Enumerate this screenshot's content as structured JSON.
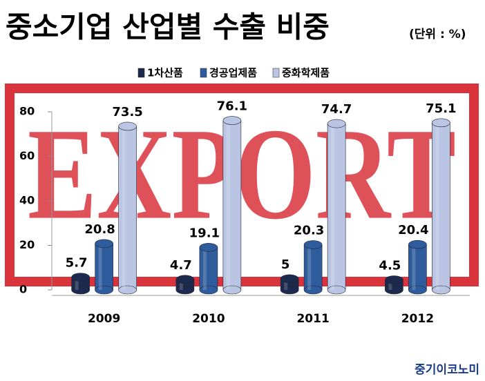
{
  "chart_data": {
    "type": "bar",
    "title": "중소기업 산업별 수출 비중",
    "subtitle": "(단위 : %)",
    "watermark": "EXPORT",
    "source": "중기이코노미",
    "categories": [
      "2009",
      "2010",
      "2011",
      "2012"
    ],
    "series": [
      {
        "name": "1차산품",
        "color": "#1c2b4d",
        "values": [
          5.7,
          4.7,
          5,
          4.5
        ]
      },
      {
        "name": "경공업제품",
        "color": "#2f5c9c",
        "values": [
          20.8,
          19.1,
          20.3,
          20.4
        ]
      },
      {
        "name": "중화학제품",
        "color": "#b9c5e2",
        "values": [
          73.5,
          76.1,
          74.7,
          75.1
        ]
      }
    ],
    "ylim": [
      0,
      80
    ],
    "yticks": [
      0,
      20,
      40,
      60,
      80
    ],
    "legend": "top"
  }
}
